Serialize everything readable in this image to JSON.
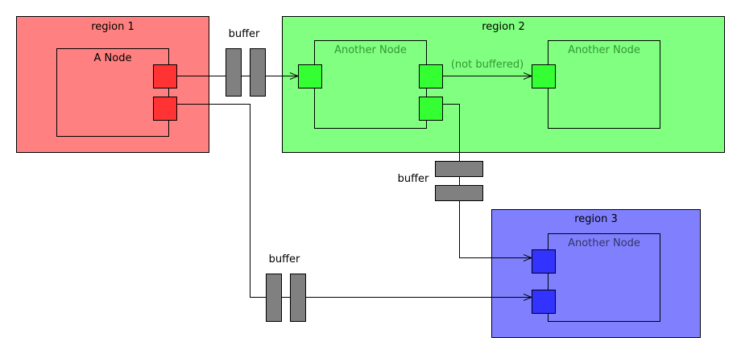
{
  "colors": {
    "region1": "#ff8080",
    "region2": "#80ff80",
    "region3": "#8080ff",
    "port1": "#ff3333",
    "port2": "#33ff33",
    "port3": "#3333ff",
    "buffer": "#808080",
    "node_label_green": "#339933",
    "node_label_blue": "#333366"
  },
  "regions": {
    "r1": {
      "label": "region 1"
    },
    "r2": {
      "label": "region 2"
    },
    "r3": {
      "label": "region 3"
    }
  },
  "nodes": {
    "a": {
      "label": "A Node"
    },
    "b": {
      "label": "Another Node"
    },
    "c": {
      "label": "Another Node"
    },
    "d": {
      "label": "Another Node"
    }
  },
  "buffers": {
    "top": {
      "label": "buffer"
    },
    "mid": {
      "label": "buffer"
    },
    "bottom": {
      "label": "buffer"
    }
  },
  "edges": {
    "not_buffered": {
      "label": "(not buffered)"
    }
  }
}
